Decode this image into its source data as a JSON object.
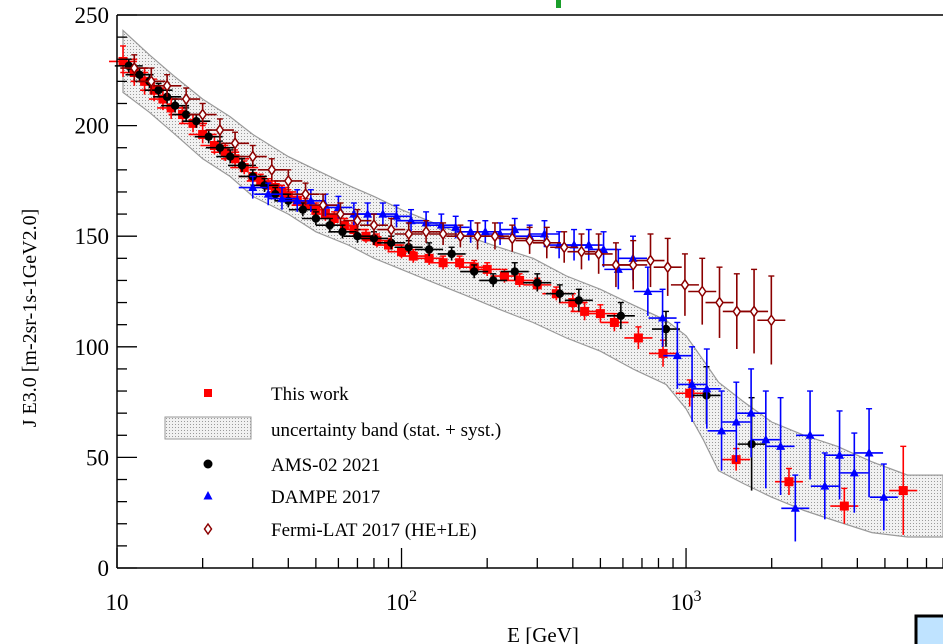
{
  "chart_data": {
    "type": "scatter",
    "title": "",
    "xlabel": "E [GeV]",
    "ylabel": "J E3.0 [m-2sr-1s-1GeV2.0]",
    "xscale": "log",
    "xlim": [
      10,
      8000
    ],
    "ylim": [
      0,
      250
    ],
    "yticks": [
      0,
      50,
      100,
      150,
      200,
      250
    ],
    "xtick_labels": [
      "10",
      "10^2",
      "10^3"
    ],
    "grid": false,
    "legend_position": "bottom-left",
    "legend": [
      {
        "label": "This work",
        "marker": "square",
        "color": "#ff0000"
      },
      {
        "label": "uncertainty band (stat. + syst.)",
        "marker": "band",
        "color": "#c8c8c8"
      },
      {
        "label": "AMS-02 2021",
        "marker": "circle",
        "color": "#000000"
      },
      {
        "label": "DAMPE 2017",
        "marker": "triangle",
        "color": "#0000ff"
      },
      {
        "label": "Fermi-LAT 2017 (HE+LE)",
        "marker": "open-diamond",
        "color": "#8b0000"
      }
    ],
    "band": {
      "x": [
        10.5,
        13,
        16,
        20,
        25,
        30,
        40,
        50,
        65,
        80,
        100,
        130,
        170,
        220,
        290,
        380,
        500,
        650,
        850,
        1000,
        1150,
        1300,
        1600,
        2000,
        2600,
        3400,
        4500,
        6000,
        8000
      ],
      "upper": [
        243,
        232,
        222,
        212,
        204,
        196,
        186,
        180,
        173,
        168,
        162,
        156,
        150,
        145,
        140,
        132,
        126,
        119,
        112,
        105,
        94,
        84,
        75,
        66,
        60,
        55,
        48,
        42,
        42
      ],
      "lower": [
        215,
        206,
        196,
        185,
        177,
        168,
        160,
        152,
        146,
        140,
        135,
        129,
        123,
        117,
        111,
        104,
        98,
        90,
        83,
        72,
        58,
        44,
        38,
        32,
        26,
        21,
        16,
        14,
        14
      ]
    },
    "series": [
      {
        "name": "This work",
        "marker": "square",
        "color": "#ff0000",
        "x": [
          10.5,
          11.5,
          12.5,
          13.5,
          14.5,
          15.5,
          17,
          18.5,
          20,
          22,
          24,
          26,
          28,
          30,
          32,
          34,
          36,
          38,
          40,
          43,
          46,
          50,
          54,
          58,
          63,
          68,
          75,
          82,
          90,
          100,
          110,
          125,
          140,
          160,
          180,
          200,
          230,
          260,
          300,
          350,
          400,
          440,
          500,
          560,
          680,
          830,
          1030,
          1500,
          2300,
          3600,
          5800
        ],
        "y": [
          229,
          224,
          220,
          216,
          212,
          208,
          205,
          201,
          196,
          191,
          188,
          185,
          181,
          177,
          175,
          173,
          172,
          170,
          168,
          166,
          164,
          162,
          160,
          158,
          155,
          153,
          150,
          148,
          146,
          143,
          141,
          140,
          138,
          138,
          136,
          135,
          132,
          130,
          128,
          124,
          120,
          116,
          115,
          111,
          104,
          97,
          79,
          49,
          39,
          28,
          35
        ],
        "err_y": [
          7,
          6,
          6,
          5,
          5,
          5,
          4,
          4,
          4,
          4,
          4,
          4,
          3,
          3,
          3,
          3,
          3,
          3,
          3,
          3,
          3,
          3,
          3,
          3,
          3,
          3,
          3,
          3,
          3,
          3,
          3,
          3,
          3,
          3,
          3,
          3,
          3,
          3,
          3,
          3,
          4,
          4,
          4,
          4,
          5,
          6,
          6,
          5,
          6,
          8,
          20
        ]
      },
      {
        "name": "AMS-02 2021",
        "marker": "circle",
        "color": "#000000",
        "x": [
          11,
          12,
          13,
          14,
          15,
          16,
          17.5,
          19,
          21,
          23,
          25,
          27.5,
          30,
          33,
          36,
          40,
          45,
          50,
          56,
          62,
          70,
          80,
          92,
          106,
          125,
          150,
          180,
          210,
          250,
          300,
          360,
          420,
          590,
          850,
          1180,
          1700
        ],
        "y": [
          227,
          223,
          220,
          216,
          213,
          209,
          205,
          202,
          195,
          190,
          186,
          182,
          177,
          173,
          169,
          166,
          162,
          158,
          155,
          152,
          150,
          149,
          147,
          145,
          144,
          142,
          134,
          130,
          134,
          129,
          124,
          121,
          114,
          108,
          78,
          56
        ],
        "err_y": [
          3,
          3,
          3,
          3,
          3,
          3,
          3,
          3,
          3,
          3,
          3,
          3,
          3,
          3,
          3,
          3,
          3,
          3,
          3,
          3,
          3,
          3,
          3,
          3,
          3,
          3,
          3,
          3,
          4,
          4,
          4,
          5,
          6,
          8,
          13,
          21
        ]
      },
      {
        "name": "DAMPE 2017",
        "marker": "triangle",
        "color": "#0000ff",
        "x": [
          30,
          34,
          38,
          43,
          48,
          54,
          60,
          68,
          76,
          86,
          96,
          108,
          122,
          138,
          155,
          175,
          197,
          222,
          250,
          282,
          318,
          358,
          404,
          455,
          513,
          578,
          651,
          734,
          827,
          932,
          1050,
          1183,
          1333,
          1502,
          1693,
          1907,
          2149,
          2421,
          2728,
          3074,
          3464,
          3903,
          4398,
          4956
        ],
        "y": [
          172,
          169,
          167,
          166,
          166,
          164,
          163,
          160,
          160,
          160,
          159,
          157,
          156,
          155,
          154,
          152,
          152,
          151,
          153,
          150,
          151,
          146,
          146,
          146,
          144,
          135,
          140,
          125,
          113,
          96,
          83,
          81,
          62,
          66,
          70,
          58,
          55,
          27,
          60,
          37,
          51,
          43,
          52,
          32
        ],
        "err_y": [
          5,
          5,
          5,
          5,
          5,
          5,
          5,
          5,
          5,
          5,
          5,
          5,
          5,
          5,
          5,
          5,
          5,
          5,
          5,
          5,
          6,
          6,
          7,
          7,
          8,
          9,
          10,
          11,
          13,
          15,
          17,
          18,
          18,
          18,
          20,
          22,
          22,
          15,
          20,
          15,
          20,
          18,
          20,
          15
        ]
      },
      {
        "name": "Fermi-LAT 2017 (HE+LE)",
        "marker": "open-diamond",
        "color": "#8b0000",
        "x": [
          11.5,
          13.2,
          15,
          17.5,
          20,
          23,
          26,
          30,
          35,
          40,
          46,
          53,
          61,
          70,
          80,
          92,
          106,
          122,
          140,
          161,
          185,
          213,
          245,
          282,
          324,
          373,
          429,
          493,
          567,
          652,
          750,
          862,
          991,
          1140,
          1311,
          1508,
          1734,
          1994
        ],
        "y": [
          226,
          220,
          218,
          212,
          205,
          198,
          192,
          186,
          180,
          175,
          169,
          164,
          160,
          157,
          155,
          153,
          151,
          152,
          151,
          150,
          150,
          150,
          149,
          148,
          147,
          145,
          143,
          142,
          137,
          137,
          139,
          136,
          128,
          125,
          120,
          116,
          116,
          112
        ],
        "err_y": [
          6,
          6,
          5,
          5,
          5,
          5,
          5,
          5,
          5,
          5,
          5,
          5,
          5,
          5,
          5,
          5,
          5,
          5,
          5,
          5,
          6,
          6,
          6,
          6,
          7,
          7,
          8,
          9,
          10,
          11,
          12,
          13,
          14,
          15,
          16,
          17,
          19,
          20
        ]
      }
    ]
  }
}
